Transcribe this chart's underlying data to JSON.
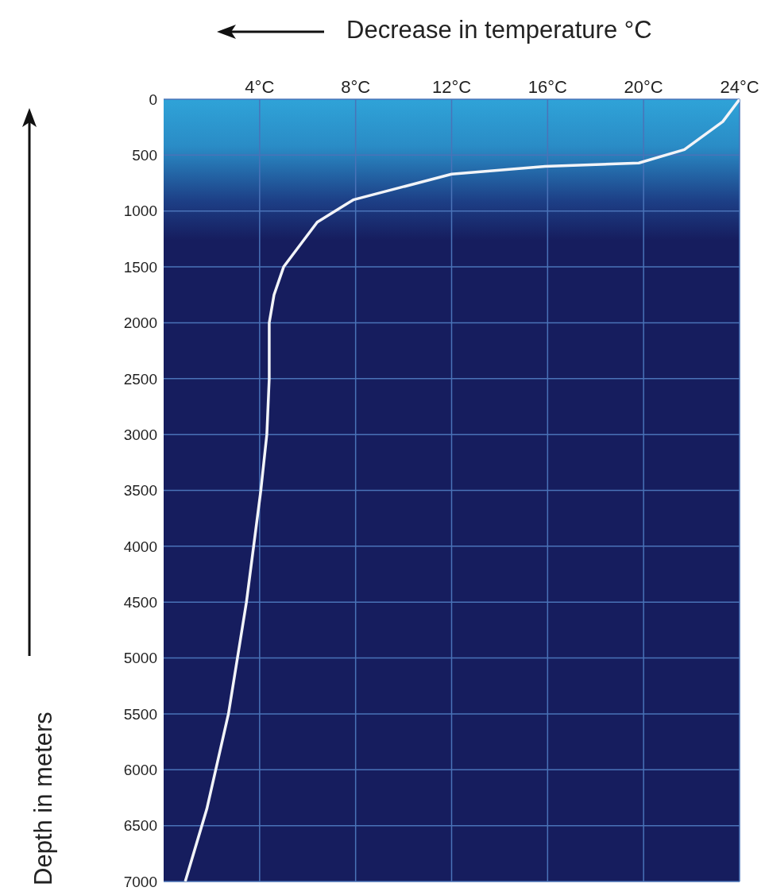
{
  "chart_data": {
    "type": "line",
    "xlabel": "Decrease in temperature °C",
    "ylabel": "Depth in meters",
    "x": [
      24,
      23.3,
      21.7,
      19.8,
      15.9,
      12.0,
      7.9,
      6.4,
      5.0,
      4.6,
      4.4,
      4.4,
      4.3,
      4.05,
      3.45,
      2.7,
      1.8,
      0.9
    ],
    "series": [
      {
        "color": "#f2f4f8",
        "values": [
          0,
          200,
          450,
          570,
          600,
          670,
          900,
          1100,
          1500,
          1750,
          2000,
          2500,
          3000,
          3500,
          4500,
          5500,
          6350,
          7000
        ]
      }
    ],
    "xlim": [
      0,
      24
    ],
    "xticks": [
      {
        "value": 4,
        "label": "4°C"
      },
      {
        "value": 8,
        "label": "8°C"
      },
      {
        "value": 12,
        "label": "12°C"
      },
      {
        "value": 16,
        "label": "16°C"
      },
      {
        "value": 20,
        "label": "20°C"
      },
      {
        "value": 24,
        "label": "24°C"
      }
    ],
    "ylim": [
      7000,
      0
    ],
    "yticks": [
      0,
      500,
      1000,
      1500,
      2000,
      2500,
      3000,
      3500,
      4000,
      4500,
      5000,
      5500,
      6000,
      6500,
      7000
    ],
    "grid": true,
    "marker": "none",
    "legend": false
  }
}
